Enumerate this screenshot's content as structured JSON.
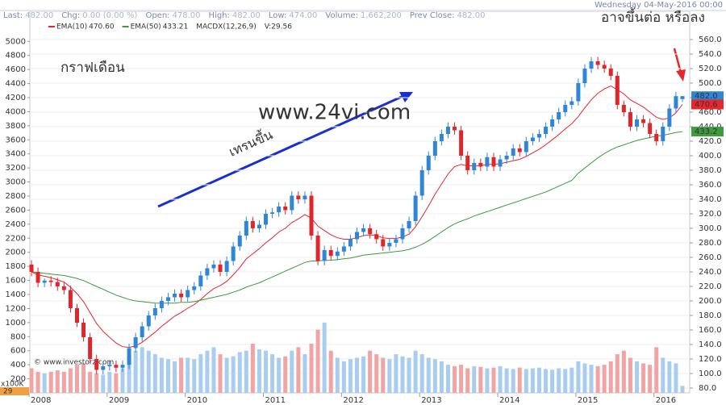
{
  "header": {
    "items": [
      {
        "label": "Last:",
        "value": "482.00"
      },
      {
        "label": "Chg:",
        "value": "0.00 (0.00 %)"
      },
      {
        "label": "Open:",
        "value": "478.00"
      },
      {
        "label": "High:",
        "value": "482.00"
      },
      {
        "label": "Low:",
        "value": "474.00"
      },
      {
        "label": "Volume:",
        "value": "1,662,200"
      },
      {
        "label": "Prev Close:",
        "value": "482.00"
      }
    ],
    "date": "Wednesday 04-May-2016 00:00"
  },
  "chart_data": {
    "type": "candlestick",
    "categories": [
      "2008",
      null,
      null,
      null,
      null,
      null,
      null,
      null,
      null,
      null,
      null,
      null,
      "2009",
      null,
      null,
      null,
      null,
      null,
      null,
      null,
      null,
      null,
      null,
      null,
      "2010",
      null,
      null,
      null,
      null,
      null,
      null,
      null,
      null,
      null,
      null,
      null,
      "2011",
      null,
      null,
      null,
      null,
      null,
      null,
      null,
      null,
      null,
      null,
      null,
      "2012",
      null,
      null,
      null,
      null,
      null,
      null,
      null,
      null,
      null,
      null,
      null,
      "2013",
      null,
      null,
      null,
      null,
      null,
      null,
      null,
      null,
      null,
      null,
      null,
      "2014",
      null,
      null,
      null,
      null,
      null,
      null,
      null,
      null,
      null,
      null,
      null,
      "2015",
      null,
      null,
      null,
      null,
      null,
      null,
      null,
      null,
      null,
      null,
      null,
      "2016",
      null,
      null,
      null,
      null
    ],
    "open": [
      250,
      240,
      225,
      228,
      226,
      220,
      215,
      190,
      170,
      150,
      120,
      105,
      110,
      112,
      108,
      112,
      135,
      150,
      165,
      180,
      190,
      200,
      205,
      210,
      205,
      215,
      220,
      235,
      245,
      250,
      240,
      255,
      275,
      290,
      310,
      300,
      305,
      320,
      322,
      330,
      325,
      345,
      340,
      345,
      290,
      255,
      270,
      262,
      268,
      275,
      285,
      295,
      300,
      292,
      285,
      275,
      280,
      285,
      300,
      310,
      345,
      380,
      400,
      420,
      430,
      440,
      435,
      400,
      380,
      390,
      385,
      398,
      385,
      395,
      400,
      410,
      405,
      420,
      425,
      430,
      440,
      450,
      460,
      470,
      475,
      500,
      520,
      530,
      525,
      520,
      510,
      470,
      460,
      440,
      450,
      445,
      430,
      420,
      440,
      465,
      478
    ],
    "high": [
      256,
      246,
      231,
      234,
      232,
      226,
      221,
      196,
      176,
      156,
      126,
      116,
      118,
      118,
      118,
      141,
      156,
      171,
      186,
      196,
      206,
      211,
      216,
      216,
      221,
      226,
      241,
      251,
      256,
      256,
      261,
      281,
      296,
      316,
      316,
      311,
      326,
      328,
      336,
      336,
      351,
      351,
      351,
      351,
      296,
      276,
      276,
      274,
      281,
      291,
      301,
      306,
      306,
      298,
      291,
      286,
      291,
      306,
      316,
      351,
      386,
      406,
      426,
      436,
      446,
      446,
      441,
      406,
      396,
      396,
      404,
      404,
      401,
      406,
      416,
      416,
      426,
      431,
      436,
      446,
      456,
      466,
      476,
      481,
      506,
      526,
      536,
      536,
      531,
      526,
      516,
      476,
      466,
      456,
      456,
      451,
      436,
      446,
      471,
      488,
      482
    ],
    "low": [
      234,
      219,
      219,
      220,
      214,
      209,
      184,
      164,
      144,
      114,
      99,
      99,
      104,
      102,
      102,
      106,
      129,
      144,
      159,
      174,
      184,
      194,
      199,
      199,
      199,
      209,
      214,
      229,
      239,
      234,
      234,
      249,
      269,
      284,
      294,
      294,
      299,
      314,
      316,
      319,
      319,
      334,
      334,
      284,
      249,
      249,
      256,
      256,
      262,
      269,
      279,
      289,
      286,
      279,
      269,
      269,
      274,
      279,
      294,
      304,
      339,
      374,
      394,
      414,
      424,
      429,
      394,
      374,
      374,
      379,
      379,
      379,
      379,
      389,
      394,
      399,
      399,
      414,
      419,
      424,
      434,
      444,
      454,
      464,
      469,
      494,
      514,
      519,
      514,
      504,
      464,
      454,
      434,
      434,
      439,
      424,
      414,
      414,
      434,
      459,
      474
    ],
    "close": [
      240,
      225,
      228,
      226,
      220,
      215,
      190,
      170,
      150,
      120,
      105,
      110,
      112,
      108,
      112,
      135,
      150,
      165,
      180,
      190,
      200,
      205,
      210,
      205,
      215,
      220,
      235,
      245,
      250,
      240,
      255,
      275,
      290,
      310,
      300,
      305,
      320,
      322,
      330,
      325,
      345,
      340,
      345,
      290,
      255,
      270,
      262,
      268,
      275,
      285,
      295,
      300,
      292,
      285,
      275,
      280,
      285,
      300,
      310,
      345,
      380,
      400,
      420,
      430,
      440,
      435,
      400,
      380,
      390,
      385,
      398,
      385,
      395,
      400,
      410,
      405,
      420,
      425,
      430,
      440,
      450,
      460,
      470,
      475,
      500,
      520,
      530,
      525,
      520,
      510,
      470,
      460,
      440,
      450,
      445,
      430,
      420,
      440,
      465,
      482,
      482
    ],
    "volume": [
      350,
      300,
      280,
      300,
      320,
      300,
      350,
      400,
      420,
      300,
      280,
      260,
      300,
      280,
      350,
      500,
      600,
      650,
      600,
      550,
      500,
      480,
      450,
      500,
      500,
      480,
      550,
      600,
      650,
      550,
      500,
      520,
      580,
      600,
      700,
      620,
      600,
      550,
      500,
      520,
      600,
      650,
      550,
      700,
      900,
      1000,
      600,
      500,
      450,
      480,
      500,
      520,
      600,
      550,
      500,
      480,
      550,
      520,
      500,
      600,
      550,
      500,
      480,
      450,
      400,
      380,
      400,
      350,
      380,
      370,
      350,
      360,
      380,
      350,
      340,
      360,
      340,
      350,
      360,
      340,
      330,
      350,
      340,
      360,
      450,
      420,
      400,
      380,
      400,
      450,
      550,
      600,
      500,
      450,
      420,
      400,
      650,
      500,
      450,
      420,
      100
    ],
    "up_color": "#2f86d6",
    "down_color": "#e0262b",
    "volume_up_color": "#a9cdf0",
    "volume_down_color": "#f2a3a3",
    "last_tag": "482.0",
    "series": [
      {
        "name": "EMA(10)",
        "value_label": "470.60",
        "tag": "470.6",
        "color": "#e8262b",
        "values": [
          240,
          236,
          234,
          232,
          229,
          226,
          219,
          210,
          199,
          184,
          169,
          158,
          150,
          142,
          137,
          136,
          138,
          143,
          150,
          157,
          165,
          172,
          179,
          184,
          190,
          195,
          202,
          210,
          217,
          221,
          227,
          236,
          246,
          258,
          265,
          272,
          280,
          287,
          295,
          300,
          308,
          313,
          319,
          314,
          303,
          297,
          291,
          287,
          285,
          285,
          287,
          290,
          291,
          290,
          287,
          286,
          286,
          288,
          292,
          302,
          316,
          331,
          347,
          361,
          375,
          385,
          388,
          386,
          386,
          386,
          388,
          388,
          389,
          391,
          393,
          395,
          399,
          404,
          409,
          415,
          422,
          429,
          437,
          444,
          454,
          466,
          477,
          486,
          492,
          496,
          491,
          485,
          477,
          472,
          467,
          460,
          453,
          450,
          452,
          459,
          470.6
        ]
      },
      {
        "name": "EMA(50)",
        "value_label": "433.21",
        "tag": "433.2",
        "color": "#3d9a3d",
        "values": [
          240,
          239,
          238,
          237,
          236,
          235,
          233,
          231,
          228,
          224,
          220,
          216,
          212,
          208,
          205,
          202,
          200,
          199,
          198,
          197,
          197,
          197,
          197,
          198,
          198,
          199,
          201,
          203,
          205,
          207,
          209,
          212,
          215,
          219,
          222,
          225,
          229,
          233,
          237,
          241,
          245,
          249,
          253,
          255,
          255,
          256,
          256,
          257,
          258,
          259,
          261,
          263,
          264,
          265,
          266,
          267,
          268,
          269,
          271,
          274,
          278,
          283,
          289,
          295,
          301,
          306,
          310,
          313,
          317,
          320,
          323,
          326,
          329,
          332,
          335,
          338,
          341,
          344,
          347,
          350,
          354,
          358,
          362,
          366,
          376,
          383,
          390,
          397,
          403,
          408,
          412,
          415,
          418,
          421,
          423,
          425,
          427,
          428,
          430,
          432,
          433.2
        ]
      }
    ],
    "indicators": [
      {
        "name": "MACDX(12,26,9)",
        "color": "#d633c8"
      },
      {
        "name": "V:29.56",
        "color": "#f0b060"
      }
    ],
    "ylim": [
      73.3,
      577.8
    ],
    "yticks": [
      {
        "value": 80,
        "label": "80.0"
      },
      {
        "value": 100,
        "label": "100.0"
      },
      {
        "value": 120,
        "label": "120.0"
      },
      {
        "value": 140,
        "label": "140.0"
      },
      {
        "value": 160,
        "label": "160.0"
      },
      {
        "value": 180,
        "label": "180.0"
      },
      {
        "value": 200,
        "label": "200.0"
      },
      {
        "value": 220,
        "label": "220.0"
      },
      {
        "value": 240,
        "label": "240.0"
      },
      {
        "value": 260,
        "label": "260.0"
      },
      {
        "value": 280,
        "label": "280.0"
      },
      {
        "value": 300,
        "label": "300.0"
      },
      {
        "value": 320,
        "label": "320.0"
      },
      {
        "value": 340,
        "label": "340.0"
      },
      {
        "value": 360,
        "label": "360.0"
      },
      {
        "value": 380,
        "label": "380.0"
      },
      {
        "value": 400,
        "label": "400.0"
      },
      {
        "value": 420,
        "label": "420.0"
      },
      {
        "value": 440,
        "label": "440.0"
      },
      {
        "value": 460,
        "label": "460.0"
      },
      {
        "value": 480,
        "label": "480.0"
      },
      {
        "value": 500,
        "label": "500.0"
      },
      {
        "value": 520,
        "label": "520.0"
      },
      {
        "value": 540,
        "label": "540.0"
      },
      {
        "value": 560,
        "label": "560.0"
      }
    ],
    "y2lim": [
      0,
      5210
    ],
    "y2ticks": [
      200,
      400,
      600,
      800,
      1000,
      1200,
      1400,
      1600,
      1800,
      2000,
      2200,
      2400,
      2600,
      2800,
      3000,
      3200,
      3400,
      3600,
      3800,
      4000,
      4200,
      4400,
      4600,
      4800,
      5000
    ],
    "y2_unit": "x100K",
    "y2_corner": "29",
    "grid": true,
    "annotations": [
      {
        "text": "กราฟเดือน",
        "color": "#1a2fd0"
      },
      {
        "text": "เทรนขึ้น",
        "color": "#1a2fd0"
      },
      {
        "text": "อาจขึ้นต่อ หรือลง",
        "color": "#e8262b"
      }
    ],
    "watermark": "www.24vi.com",
    "copyright": "© www.investorz.com"
  }
}
